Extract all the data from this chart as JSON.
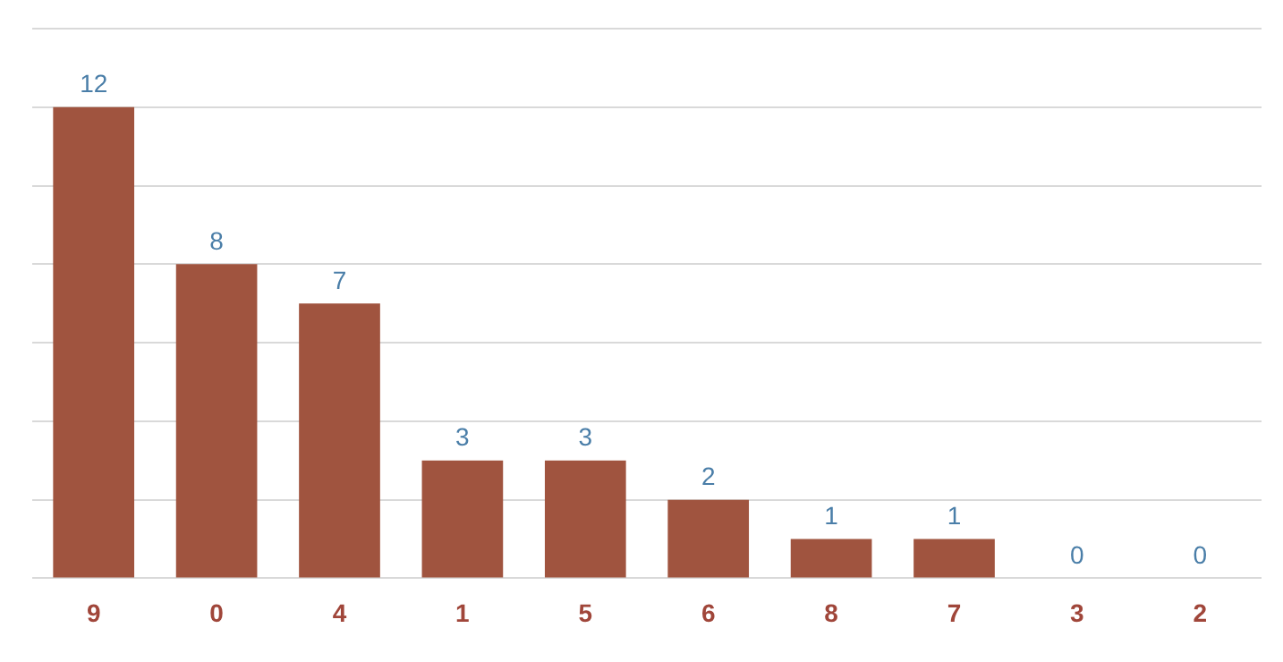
{
  "chart_data": {
    "type": "bar",
    "categories": [
      "9",
      "0",
      "4",
      "1",
      "5",
      "6",
      "8",
      "7",
      "3",
      "2"
    ],
    "values": [
      12,
      8,
      7,
      3,
      3,
      2,
      1,
      1,
      0,
      0
    ],
    "color": "#a0543f",
    "ylim": [
      0,
      14
    ],
    "yticks": [
      {
        "value": 0,
        "label": null
      },
      {
        "value": 2,
        "label": null
      },
      {
        "value": 4,
        "label": null
      },
      {
        "value": 6,
        "label": null
      },
      {
        "value": 8,
        "label": null
      },
      {
        "value": 10,
        "label": null
      },
      {
        "value": 12,
        "label": null
      },
      {
        "value": 14,
        "label": null
      }
    ],
    "tick_labels": "x",
    "grid": "y",
    "legend": false,
    "data_labels": true
  }
}
